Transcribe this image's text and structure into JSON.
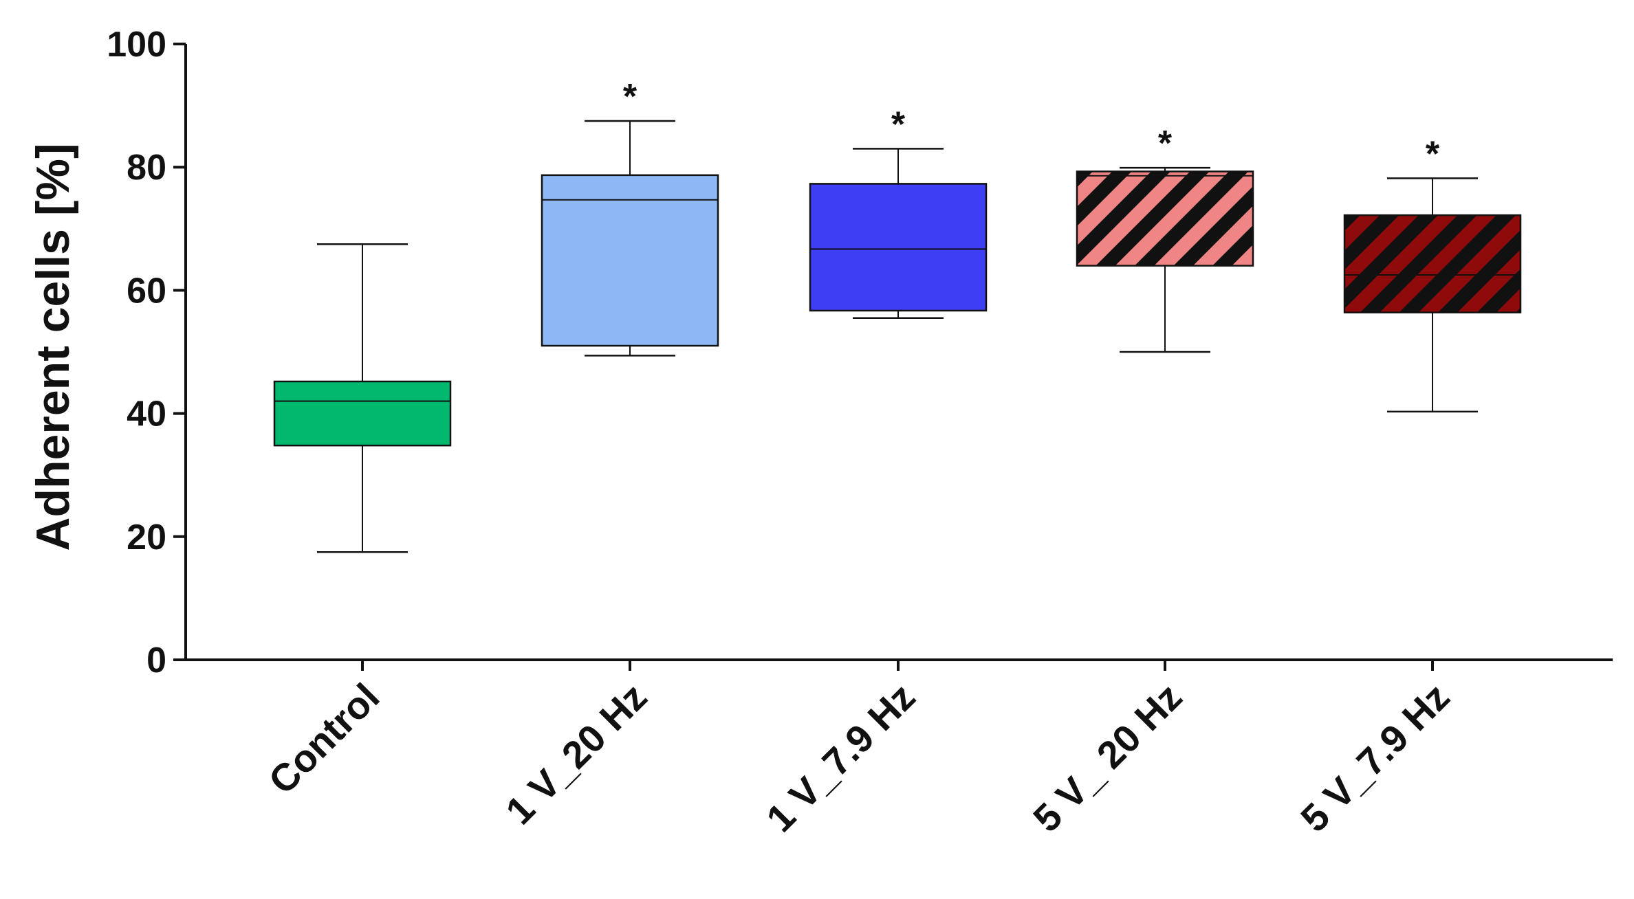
{
  "chart_data": {
    "type": "box",
    "ylabel": "Adherent cells [%]",
    "xlabel": "",
    "ylim": [
      0,
      100
    ],
    "yticks": [
      0,
      20,
      40,
      60,
      80,
      100
    ],
    "grid": false,
    "categories": [
      "Control",
      "1 V_20 Hz",
      "1 V_7.9 Hz",
      "5 V_ 20 Hz",
      "5 V_7.9 Hz"
    ],
    "boxes": [
      {
        "category": "Control",
        "min": 17.5,
        "q1": 34.8,
        "median": 42.0,
        "q3": 45.2,
        "max": 67.5,
        "significance": "",
        "fill": "#00b96f",
        "pattern": "solid"
      },
      {
        "category": "1 V_20 Hz",
        "min": 49.4,
        "q1": 51.0,
        "median": 74.7,
        "q3": 78.7,
        "max": 87.5,
        "significance": "*",
        "fill": "#8db8f5",
        "pattern": "solid"
      },
      {
        "category": "1 V_7.9 Hz",
        "min": 55.5,
        "q1": 56.7,
        "median": 66.7,
        "q3": 77.3,
        "max": 83.0,
        "significance": "*",
        "fill": "#3e3ef5",
        "pattern": "solid"
      },
      {
        "category": "5 V_ 20 Hz",
        "min": 50.0,
        "q1": 64.0,
        "median": 78.6,
        "q3": 79.3,
        "max": 79.9,
        "significance": "*",
        "fill": "#ef8585",
        "pattern": "hatched"
      },
      {
        "category": "5 V_7.9 Hz",
        "min": 40.3,
        "q1": 56.4,
        "median": 62.5,
        "q3": 72.2,
        "max": 78.2,
        "significance": "*",
        "fill": "#8f0b0b",
        "pattern": "hatched"
      }
    ],
    "hatch_color": "#111111"
  }
}
